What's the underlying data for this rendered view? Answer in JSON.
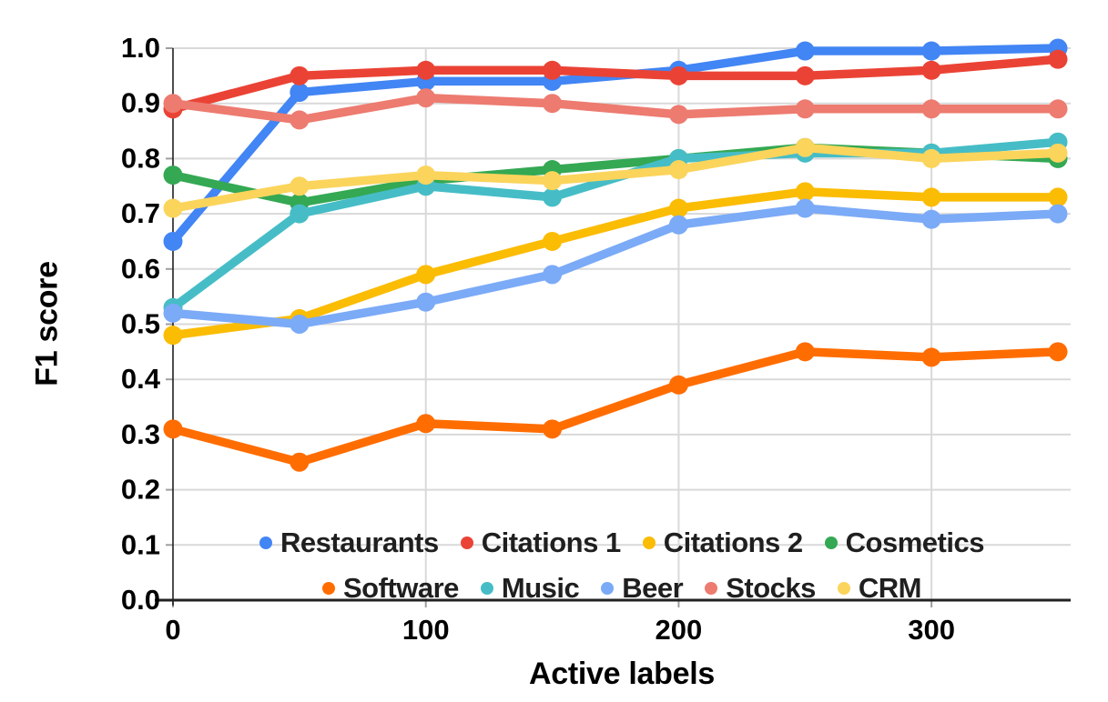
{
  "chart_data": {
    "type": "line",
    "title": "",
    "xlabel": "Active labels",
    "ylabel": "F1 score",
    "x": [
      0,
      50,
      100,
      150,
      200,
      250,
      300,
      350
    ],
    "x_tick_values": [
      0,
      100,
      200,
      300
    ],
    "x_tick_labels": [
      "0",
      "100",
      "200",
      "300"
    ],
    "y_tick_values": [
      0.0,
      0.1,
      0.2,
      0.3,
      0.4,
      0.5,
      0.6,
      0.7,
      0.8,
      0.9,
      1.0
    ],
    "y_tick_labels": [
      "0.0",
      "0.1",
      "0.2",
      "0.3",
      "0.4",
      "0.5",
      "0.6",
      "0.7",
      "0.8",
      "0.9",
      "1.0"
    ],
    "xlim": [
      0,
      355
    ],
    "ylim": [
      0.0,
      1.0
    ],
    "grid": true,
    "legend_position": "inside-bottom-two-rows",
    "legend_rows": [
      [
        "Restaurants",
        "Citations 1",
        "Citations 2",
        "Cosmetics"
      ],
      [
        "Software",
        "Music",
        "Beer",
        "Stocks",
        "CRM"
      ]
    ],
    "series": [
      {
        "name": "Restaurants",
        "color": "#4285F4",
        "values": [
          0.65,
          0.92,
          0.94,
          0.94,
          0.96,
          0.995,
          0.995,
          1.0
        ]
      },
      {
        "name": "Citations 1",
        "color": "#EA4335",
        "values": [
          0.89,
          0.95,
          0.96,
          0.96,
          0.95,
          0.95,
          0.96,
          0.98
        ]
      },
      {
        "name": "Citations 2",
        "color": "#FBBC04",
        "values": [
          0.48,
          0.51,
          0.59,
          0.65,
          0.71,
          0.74,
          0.73,
          0.73
        ]
      },
      {
        "name": "Cosmetics",
        "color": "#34A853",
        "values": [
          0.77,
          0.72,
          0.76,
          0.78,
          0.8,
          0.82,
          0.81,
          0.8
        ]
      },
      {
        "name": "Software",
        "color": "#FF6D01",
        "values": [
          0.31,
          0.25,
          0.32,
          0.31,
          0.39,
          0.45,
          0.44,
          0.45
        ]
      },
      {
        "name": "Music",
        "color": "#46BDC6",
        "values": [
          0.53,
          0.7,
          0.75,
          0.73,
          0.8,
          0.81,
          0.81,
          0.83
        ]
      },
      {
        "name": "Beer",
        "color": "#7BAAF7",
        "values": [
          0.52,
          0.5,
          0.54,
          0.59,
          0.68,
          0.71,
          0.69,
          0.7
        ]
      },
      {
        "name": "Stocks",
        "color": "#ED7B70",
        "values": [
          0.9,
          0.87,
          0.91,
          0.9,
          0.88,
          0.89,
          0.89,
          0.89
        ]
      },
      {
        "name": "CRM",
        "color": "#FBD45C",
        "values": [
          0.71,
          0.75,
          0.77,
          0.76,
          0.78,
          0.82,
          0.8,
          0.81
        ]
      }
    ],
    "styles": {
      "background": "#ffffff",
      "gridline_color": "#d9d9d9",
      "axis_color": "#212121",
      "tick_color": "#9e9e9e",
      "tick_label_color": "#000000",
      "legend_text_color": "#1f1f1f"
    }
  }
}
